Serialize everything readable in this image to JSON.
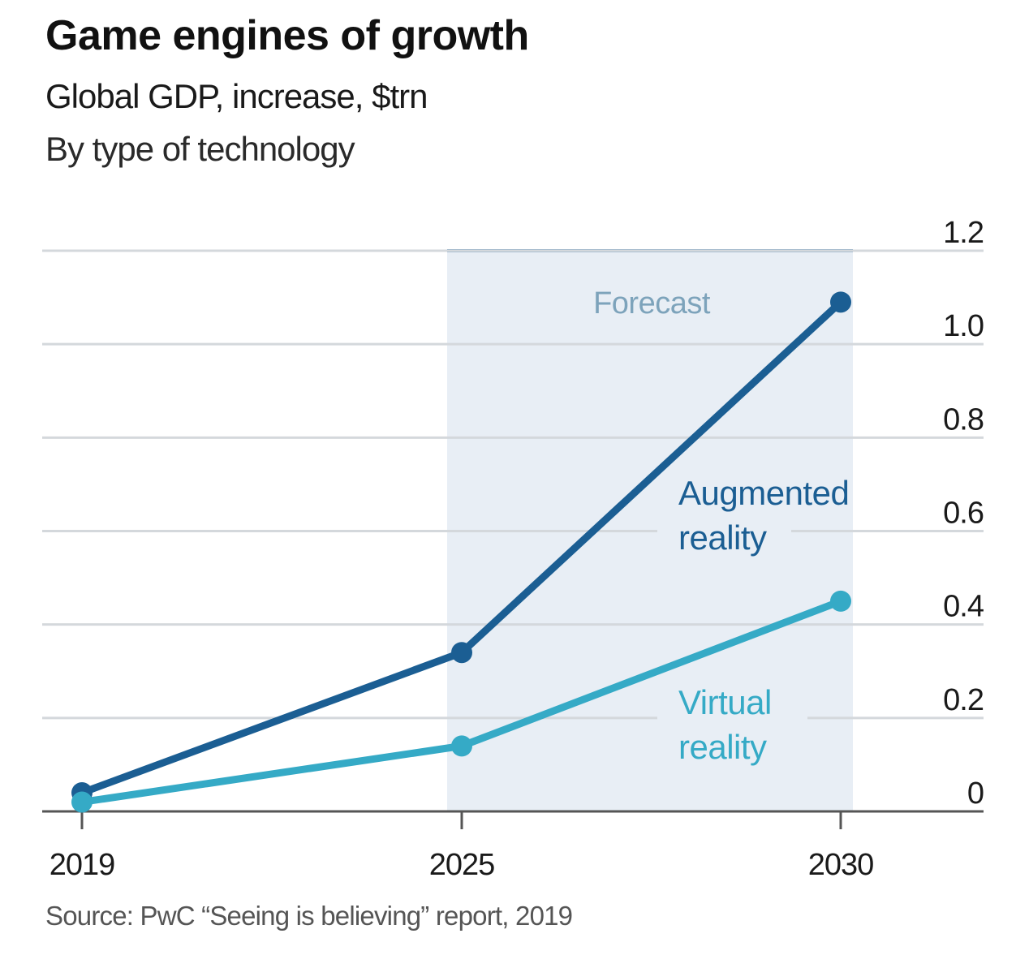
{
  "header": {
    "title": "Game engines of growth",
    "subtitle": "Global GDP, increase, $trn",
    "subsubtitle": "By type of technology"
  },
  "footer": {
    "source": "Source: PwC “Seeing is believing” report, 2019"
  },
  "colors": {
    "augmented": "#1b5e93",
    "virtual": "#35aac6",
    "forecast_fill": "#e8eef5",
    "forecast_top": "#7fa6c4",
    "forecast_text": "#7da3bb",
    "grid": "#d4d8dc",
    "axis": "#555555"
  },
  "chart_data": {
    "type": "line",
    "title": "Game engines of growth",
    "subtitle": "Global GDP, increase, $trn — By type of technology",
    "xlabel": "",
    "ylabel": "$trn",
    "x": [
      2019,
      2025,
      2030
    ],
    "x_tick_labels": [
      "2019",
      "2025",
      "2030"
    ],
    "y_ticks": [
      0,
      0.2,
      0.4,
      0.6,
      0.8,
      1.0,
      1.2
    ],
    "y_tick_labels": [
      "0",
      "0.2",
      "0.4",
      "0.6",
      "0.8",
      "1.0",
      "1.2"
    ],
    "ylim": [
      0,
      1.2
    ],
    "y_axis_side": "right",
    "grid": true,
    "series": [
      {
        "name": "Augmented reality",
        "label_lines": [
          "Augmented",
          "reality"
        ],
        "values": [
          0.04,
          0.34,
          1.09
        ]
      },
      {
        "name": "Virtual reality",
        "label_lines": [
          "Virtual",
          "reality"
        ],
        "values": [
          0.02,
          0.14,
          0.45
        ]
      }
    ],
    "annotations": [
      {
        "text": "Forecast",
        "x_range": [
          2025,
          2030
        ],
        "type": "shaded-region"
      }
    ],
    "legend": "inline-labels"
  }
}
